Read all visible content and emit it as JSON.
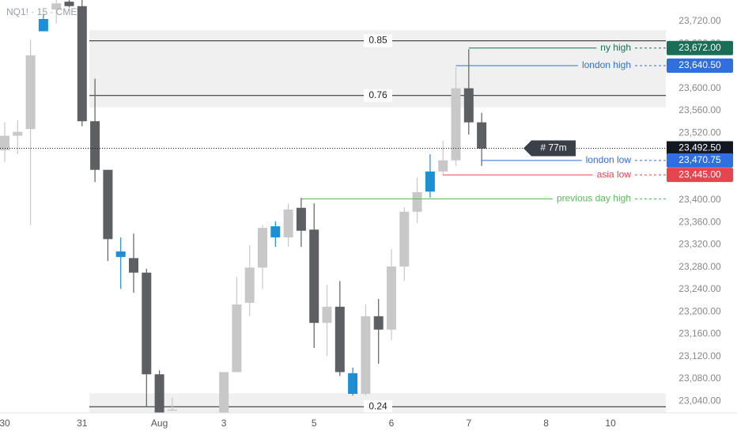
{
  "chart_data": {
    "type": "candlestick",
    "title": "NQ1! · 15 · CME",
    "categories": [
      "30",
      null,
      null,
      null,
      null,
      null,
      "31",
      null,
      null,
      null,
      null,
      null,
      "Aug",
      null,
      null,
      null,
      null,
      "3",
      null,
      null,
      null,
      null,
      null,
      null,
      "5",
      null,
      null,
      null,
      null,
      null,
      "6",
      null,
      null,
      null,
      null,
      null,
      "7",
      null,
      null,
      null,
      null,
      null,
      "8",
      null,
      null,
      null,
      null,
      "10",
      null,
      null,
      null,
      null
    ],
    "open": [
      23489,
      23515,
      23527,
      23702,
      23741,
      23755,
      23747,
      23541,
      23454,
      23308,
      23296,
      23270,
      23088,
      23025,
      null,
      null,
      null,
      23019,
      23092,
      23216,
      23279,
      23333,
      23333,
      23386,
      23347,
      23180,
      23209,
      23090,
      23053,
      23192,
      23168,
      23281,
      23379,
      23415,
      23451,
      23471,
      23600,
      23539,
      null,
      null,
      null,
      null,
      null,
      null,
      null,
      null,
      null,
      null,
      null,
      null,
      null,
      null
    ],
    "high": [
      23539,
      23543,
      23687,
      23733,
      23758,
      23758,
      23758,
      23617,
      23454,
      23333,
      23340,
      23277,
      23095,
      23046,
      null,
      null,
      null,
      23092,
      23262,
      23319,
      23355,
      23362,
      23393,
      23404,
      23394,
      23248,
      23255,
      23100,
      23213,
      23223,
      23312,
      23387,
      23440,
      23482,
      23506,
      23638,
      23670,
      23556,
      null,
      null,
      null,
      null,
      null,
      null,
      null,
      null,
      null,
      null,
      null,
      null,
      null,
      null
    ],
    "low": [
      23468,
      23482,
      23355,
      23702,
      23716,
      23745,
      23532,
      23432,
      23291,
      23241,
      23234,
      23029,
      23019,
      23022,
      null,
      null,
      null,
      23019,
      23092,
      23192,
      23241,
      23316,
      23316,
      23316,
      23135,
      23121,
      23085,
      23050,
      23050,
      23107,
      23149,
      23255,
      23359,
      23404,
      23444,
      23461,
      23517,
      23461,
      null,
      null,
      null,
      null,
      null,
      null,
      null,
      null,
      null,
      null,
      null,
      null,
      null,
      null
    ],
    "close": [
      23515,
      23522,
      23659,
      23724,
      23752,
      23747,
      23541,
      23454,
      23330,
      23298,
      23270,
      23088,
      23019,
      23025,
      null,
      null,
      null,
      23092,
      23213,
      23279,
      23350,
      23353,
      23383,
      23345,
      23180,
      23209,
      23092,
      23053,
      23192,
      23168,
      23281,
      23379,
      23414,
      23451,
      23471,
      23600,
      23539,
      23492,
      null,
      null,
      null,
      null,
      null,
      null,
      null,
      null,
      null,
      null,
      null,
      null,
      null,
      null
    ],
    "colors": [
      "#c8c8c8",
      "#c8c8c8",
      "#c8c8c8",
      "#1e8fd5",
      "#c8c8c8",
      "#5d5f63",
      "#5d5f63",
      "#5d5f63",
      "#5d5f63",
      "#1e8fd5",
      "#5d5f63",
      "#5d5f63",
      "#5d5f63",
      "#c8c8c8",
      null,
      null,
      null,
      "#c8c8c8",
      "#c8c8c8",
      "#c8c8c8",
      "#c8c8c8",
      "#1e8fd5",
      "#c8c8c8",
      "#5d5f63",
      "#5d5f63",
      "#c8c8c8",
      "#5d5f63",
      "#1e8fd5",
      "#c8c8c8",
      "#5d5f63",
      "#c8c8c8",
      "#c8c8c8",
      "#c8c8c8",
      "#1e8fd5",
      "#c8c8c8",
      "#c8c8c8",
      "#5d5f63",
      "#5d5f63",
      null,
      null,
      null,
      null,
      null,
      null,
      null,
      null,
      null,
      null,
      null,
      null,
      null,
      null
    ],
    "ylim": [
      23019,
      23758
    ],
    "yticks": [
      {
        "value": 23040,
        "label": "23,040.00"
      },
      {
        "value": 23080,
        "label": "23,080.00"
      },
      {
        "value": 23120,
        "label": "23,120.00"
      },
      {
        "value": 23160,
        "label": "23,160.00"
      },
      {
        "value": 23200,
        "label": "23,200.00"
      },
      {
        "value": 23240,
        "label": "23,240.00"
      },
      {
        "value": 23280,
        "label": "23,280.00"
      },
      {
        "value": 23320,
        "label": "23,320.00"
      },
      {
        "value": 23360,
        "label": "23,360.00"
      },
      {
        "value": 23400,
        "label": "23,400.00"
      },
      {
        "value": 23440,
        "label": "23,440.00"
      },
      {
        "value": 23480,
        "label": "23,480.00"
      },
      {
        "value": 23520,
        "label": "23,520.00"
      },
      {
        "value": 23560,
        "label": "23,560.00"
      },
      {
        "value": 23600,
        "label": "23,600.00"
      },
      {
        "value": 23640,
        "label": "23,640.00"
      },
      {
        "value": 23680,
        "label": "23,680.00"
      },
      {
        "value": 23720,
        "label": "23,720.00"
      }
    ],
    "zones": [
      {
        "from": 23566,
        "to": 23704
      },
      {
        "from": 23019,
        "to": 23054
      }
    ],
    "levels": [
      {
        "label": "0.85",
        "value": 23685
      },
      {
        "label": "0.76",
        "value": 23587
      },
      {
        "label": "0.24",
        "value": 23030
      }
    ],
    "price_lines": [
      {
        "name": "ny high",
        "value": 23672,
        "label": "23,672.00",
        "color": "#1a6e55"
      },
      {
        "name": "london high",
        "value": 23640.5,
        "label": "23,640.50",
        "color": "#2f6fe0"
      },
      {
        "name": "london low",
        "value": 23470.75,
        "label": "23,470.75",
        "color": "#2f6fe0"
      },
      {
        "name": "asia low",
        "value": 23445,
        "label": "23,445.00",
        "color": "#e5454f"
      },
      {
        "name": "previous day high",
        "value": 23402,
        "color": "#5cb85c"
      }
    ],
    "current": {
      "value": 23492.5,
      "label": "23,492.50",
      "tag": "# 77m",
      "color": "#131722"
    }
  }
}
